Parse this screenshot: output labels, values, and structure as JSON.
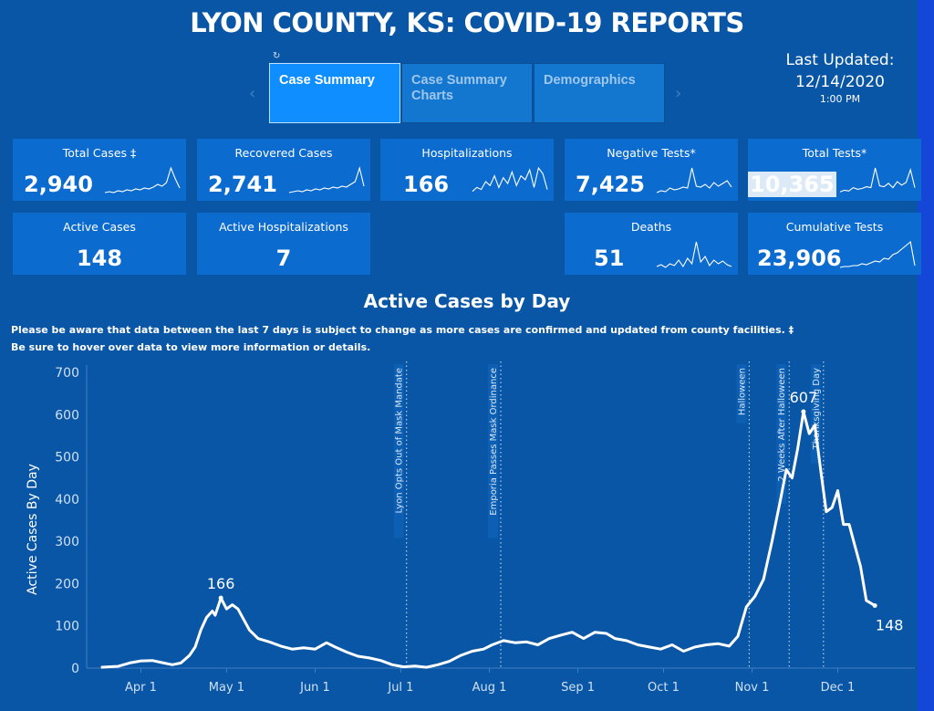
{
  "title": "LYON COUNTY, KS:  COVID-19 REPORTS",
  "refresh_glyph": "↻",
  "tabs": [
    {
      "label": "Case Summary"
    },
    {
      "label": "Case Summary\nCharts"
    },
    {
      "label": "Demographics"
    }
  ],
  "nav": {
    "prev": "‹",
    "next": "›"
  },
  "updated": {
    "label": "Last Updated:",
    "date": "12/14/2020",
    "time": "1:00 PM"
  },
  "cards": {
    "total_cases": {
      "label": "Total Cases ‡",
      "value": "2,940"
    },
    "recovered": {
      "label": "Recovered Cases",
      "value": "2,741"
    },
    "hospitalizations": {
      "label": "Hospitalizations",
      "value": "166"
    },
    "negative_tests": {
      "label": "Negative Tests*",
      "value": "7,425"
    },
    "total_tests": {
      "label": "Total Tests*",
      "value": "10,365"
    },
    "active_cases": {
      "label": "Active Cases",
      "value": "148"
    },
    "active_hosp": {
      "label": "Active Hospitalizations",
      "value": "7"
    },
    "deaths": {
      "label": "Deaths",
      "value": "51"
    },
    "cumulative_tests": {
      "label": "Cumulative Tests",
      "value": "23,906"
    }
  },
  "section_title": "Active Cases by Day",
  "notes": [
    "Please be aware that data between the last 7 days is subject to change as more cases are confirmed and updated from county facilities. ‡",
    "Be sure to hover over data to view more information or details."
  ],
  "colors": {
    "background": "#0856a5",
    "card": "#0c6bcf",
    "active_tab": "#0f8fff",
    "line": "#ffffff"
  },
  "chart_data": {
    "type": "line",
    "ylabel": "Active Cases By Day",
    "ylim": [
      0,
      700
    ],
    "yticks": [
      0,
      100,
      200,
      300,
      400,
      500,
      600,
      700
    ],
    "xlim": [
      "2020-03-13",
      "2020-12-28"
    ],
    "xticks": [
      {
        "date": "2020-04-01",
        "label": "Apr 1"
      },
      {
        "date": "2020-05-01",
        "label": "May 1"
      },
      {
        "date": "2020-06-01",
        "label": "Jun 1"
      },
      {
        "date": "2020-07-01",
        "label": "Jul 1"
      },
      {
        "date": "2020-08-01",
        "label": "Aug 1"
      },
      {
        "date": "2020-09-01",
        "label": "Sep 1"
      },
      {
        "date": "2020-10-01",
        "label": "Oct 1"
      },
      {
        "date": "2020-11-01",
        "label": "Nov 1"
      },
      {
        "date": "2020-12-01",
        "label": "Dec 1"
      }
    ],
    "reference_lines": [
      {
        "date": "2020-07-03",
        "label": "Lyon Opts Out of Mask Mandate"
      },
      {
        "date": "2020-08-05",
        "label": "Emporia Passes Mask Ordinance"
      },
      {
        "date": "2020-10-31",
        "label": "Halloween"
      },
      {
        "date": "2020-11-14",
        "label": "2 Weeks After Halloween"
      },
      {
        "date": "2020-11-26",
        "label": "Thanksgiving Day"
      }
    ],
    "data_labels": [
      {
        "date": "2020-04-29",
        "value": 166,
        "text": "166"
      },
      {
        "date": "2020-11-19",
        "value": 607,
        "text": "607"
      },
      {
        "date": "2020-12-14",
        "value": 148,
        "text": "148"
      }
    ],
    "points": [
      [
        "2020-03-18",
        2
      ],
      [
        "2020-03-24",
        4
      ],
      [
        "2020-03-28",
        12
      ],
      [
        "2020-04-01",
        17
      ],
      [
        "2020-04-05",
        18
      ],
      [
        "2020-04-09",
        12
      ],
      [
        "2020-04-12",
        8
      ],
      [
        "2020-04-15",
        12
      ],
      [
        "2020-04-18",
        30
      ],
      [
        "2020-04-20",
        50
      ],
      [
        "2020-04-22",
        90
      ],
      [
        "2020-04-24",
        120
      ],
      [
        "2020-04-26",
        135
      ],
      [
        "2020-04-27",
        125
      ],
      [
        "2020-04-29",
        166
      ],
      [
        "2020-05-01",
        140
      ],
      [
        "2020-05-03",
        150
      ],
      [
        "2020-05-05",
        140
      ],
      [
        "2020-05-07",
        115
      ],
      [
        "2020-05-09",
        90
      ],
      [
        "2020-05-12",
        70
      ],
      [
        "2020-05-16",
        62
      ],
      [
        "2020-05-20",
        52
      ],
      [
        "2020-05-24",
        45
      ],
      [
        "2020-05-28",
        48
      ],
      [
        "2020-06-01",
        45
      ],
      [
        "2020-06-05",
        60
      ],
      [
        "2020-06-08",
        50
      ],
      [
        "2020-06-12",
        38
      ],
      [
        "2020-06-16",
        28
      ],
      [
        "2020-06-20",
        24
      ],
      [
        "2020-06-24",
        18
      ],
      [
        "2020-06-28",
        8
      ],
      [
        "2020-07-02",
        3
      ],
      [
        "2020-07-06",
        5
      ],
      [
        "2020-07-10",
        2
      ],
      [
        "2020-07-14",
        8
      ],
      [
        "2020-07-18",
        16
      ],
      [
        "2020-07-22",
        30
      ],
      [
        "2020-07-26",
        40
      ],
      [
        "2020-07-30",
        45
      ],
      [
        "2020-08-02",
        55
      ],
      [
        "2020-08-06",
        65
      ],
      [
        "2020-08-10",
        60
      ],
      [
        "2020-08-14",
        62
      ],
      [
        "2020-08-18",
        55
      ],
      [
        "2020-08-22",
        70
      ],
      [
        "2020-08-26",
        78
      ],
      [
        "2020-08-30",
        85
      ],
      [
        "2020-09-03",
        70
      ],
      [
        "2020-09-07",
        85
      ],
      [
        "2020-09-11",
        82
      ],
      [
        "2020-09-14",
        70
      ],
      [
        "2020-09-18",
        65
      ],
      [
        "2020-09-22",
        55
      ],
      [
        "2020-09-26",
        50
      ],
      [
        "2020-09-30",
        45
      ],
      [
        "2020-10-04",
        55
      ],
      [
        "2020-10-08",
        40
      ],
      [
        "2020-10-12",
        50
      ],
      [
        "2020-10-16",
        55
      ],
      [
        "2020-10-20",
        58
      ],
      [
        "2020-10-24",
        52
      ],
      [
        "2020-10-27",
        75
      ],
      [
        "2020-10-30",
        145
      ],
      [
        "2020-11-02",
        170
      ],
      [
        "2020-11-05",
        210
      ],
      [
        "2020-11-08",
        300
      ],
      [
        "2020-11-11",
        400
      ],
      [
        "2020-11-13",
        470
      ],
      [
        "2020-11-15",
        450
      ],
      [
        "2020-11-17",
        520
      ],
      [
        "2020-11-19",
        607
      ],
      [
        "2020-11-21",
        555
      ],
      [
        "2020-11-23",
        575
      ],
      [
        "2020-11-25",
        470
      ],
      [
        "2020-11-27",
        370
      ],
      [
        "2020-11-29",
        380
      ],
      [
        "2020-12-01",
        420
      ],
      [
        "2020-12-03",
        340
      ],
      [
        "2020-12-05",
        340
      ],
      [
        "2020-12-07",
        290
      ],
      [
        "2020-12-09",
        240
      ],
      [
        "2020-12-11",
        160
      ],
      [
        "2020-12-14",
        148
      ]
    ]
  },
  "sparklines": {
    "total_cases": [
      3,
      4,
      3,
      5,
      4,
      6,
      5,
      7,
      6,
      8,
      7,
      9,
      12,
      10,
      14,
      30,
      18,
      8
    ],
    "recovered": [
      3,
      4,
      5,
      4,
      6,
      5,
      7,
      6,
      8,
      7,
      9,
      8,
      10,
      9,
      12,
      15,
      30,
      10
    ],
    "hospitalizations": [
      4,
      8,
      6,
      14,
      10,
      20,
      8,
      18,
      12,
      24,
      10,
      20,
      16,
      26,
      8,
      28,
      22,
      6
    ],
    "negative_tests": [
      3,
      5,
      4,
      8,
      6,
      7,
      9,
      8,
      30,
      10,
      9,
      12,
      8,
      14,
      10,
      13,
      16,
      9
    ],
    "total_tests": [
      4,
      6,
      5,
      9,
      7,
      8,
      10,
      9,
      32,
      11,
      10,
      14,
      9,
      16,
      12,
      15,
      30,
      9
    ],
    "deaths": [
      3,
      5,
      2,
      6,
      4,
      10,
      3,
      12,
      6,
      30,
      8,
      14,
      4,
      10,
      6,
      9,
      5,
      3
    ],
    "cumulative_tests": [
      2,
      3,
      3,
      4,
      4,
      6,
      5,
      7,
      9,
      8,
      12,
      11,
      16,
      18,
      22,
      26,
      30,
      4
    ]
  }
}
